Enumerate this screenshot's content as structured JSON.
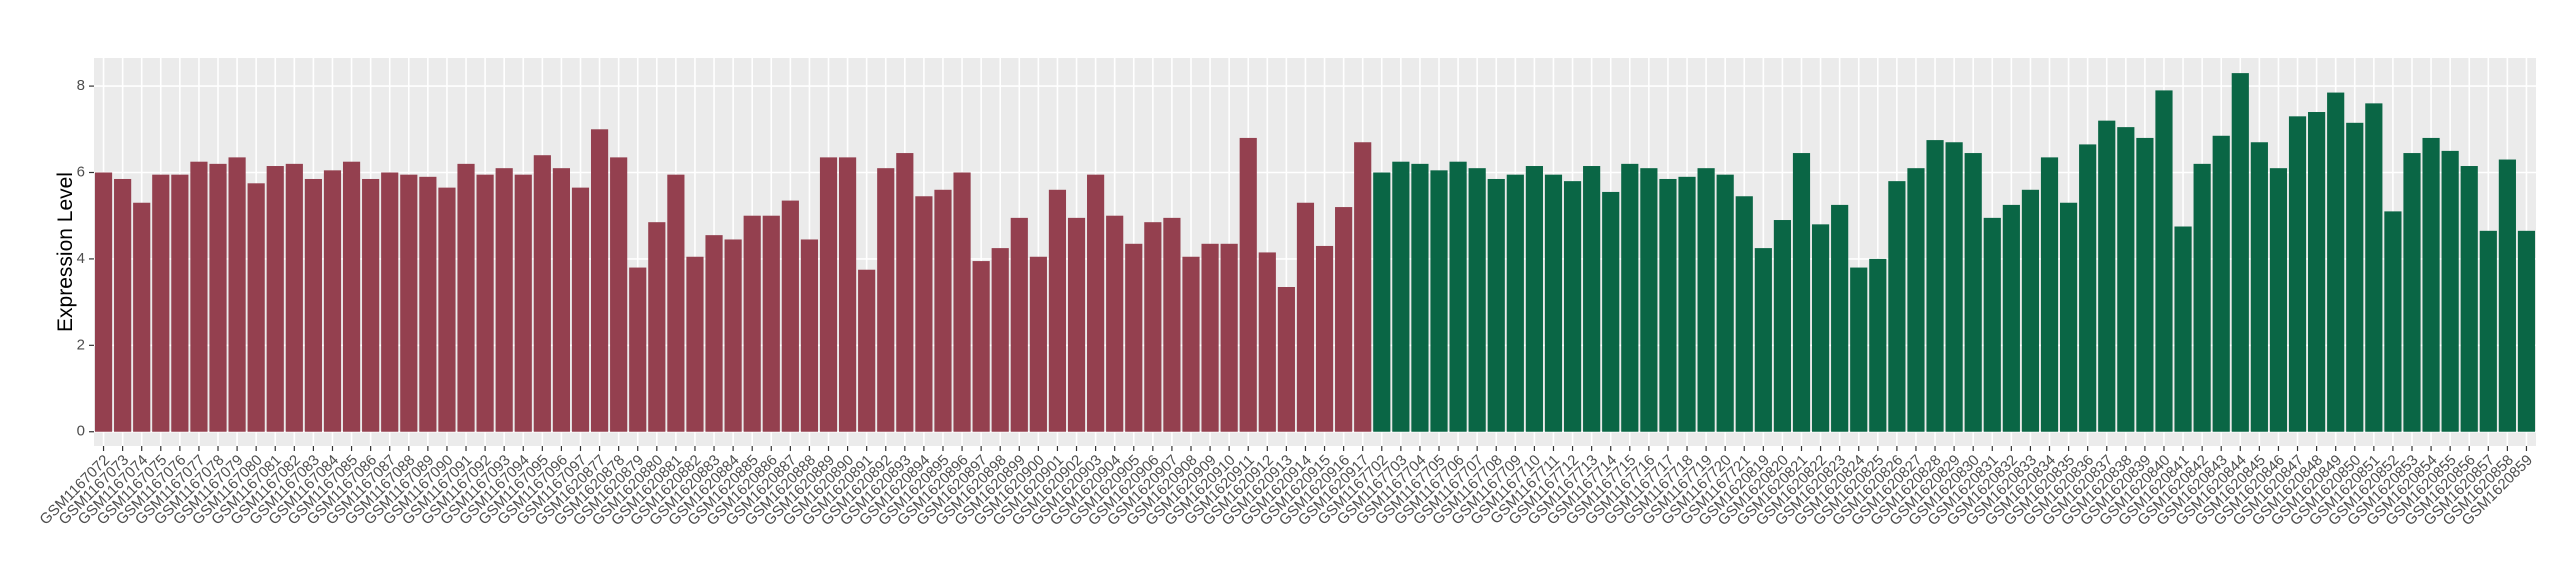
{
  "chart_data": {
    "type": "bar",
    "y_label": "Expression Level",
    "categories": [
      "GSM1167072",
      "GSM1167073",
      "GSM1167074",
      "GSM1167075",
      "GSM1167076",
      "GSM1167077",
      "GSM1167078",
      "GSM1167079",
      "GSM1167080",
      "GSM1167081",
      "GSM1167082",
      "GSM1167083",
      "GSM1167084",
      "GSM1167085",
      "GSM1167086",
      "GSM1167087",
      "GSM1167088",
      "GSM1167089",
      "GSM1167090",
      "GSM1167091",
      "GSM1167092",
      "GSM1167093",
      "GSM1167094",
      "GSM1167095",
      "GSM1167096",
      "GSM1167097",
      "GSM1620877",
      "GSM1620878",
      "GSM1620879",
      "GSM1620880",
      "GSM1620881",
      "GSM1620882",
      "GSM1620883",
      "GSM1620884",
      "GSM1620885",
      "GSM1620886",
      "GSM1620887",
      "GSM1620888",
      "GSM1620889",
      "GSM1620890",
      "GSM1620891",
      "GSM1620892",
      "GSM1620893",
      "GSM1620894",
      "GSM1620895",
      "GSM1620896",
      "GSM1620897",
      "GSM1620898",
      "GSM1620899",
      "GSM1620900",
      "GSM1620901",
      "GSM1620902",
      "GSM1620903",
      "GSM1620904",
      "GSM1620905",
      "GSM1620906",
      "GSM1620907",
      "GSM1620908",
      "GSM1620909",
      "GSM1620910",
      "GSM1620911",
      "GSM1620912",
      "GSM1620913",
      "GSM1620914",
      "GSM1620915",
      "GSM1620916",
      "GSM1620917",
      "GSM1167702",
      "GSM1167703",
      "GSM1167704",
      "GSM1167705",
      "GSM1167706",
      "GSM1167707",
      "GSM1167708",
      "GSM1167709",
      "GSM1167710",
      "GSM1167711",
      "GSM1167712",
      "GSM1167713",
      "GSM1167714",
      "GSM1167715",
      "GSM1167716",
      "GSM1167717",
      "GSM1167718",
      "GSM1167719",
      "GSM1167720",
      "GSM1167721",
      "GSM1620819",
      "GSM1620820",
      "GSM1620821",
      "GSM1620822",
      "GSM1620823",
      "GSM1620824",
      "GSM1620825",
      "GSM1620826",
      "GSM1620827",
      "GSM1620828",
      "GSM1620829",
      "GSM1620830",
      "GSM1620831",
      "GSM1620832",
      "GSM1620833",
      "GSM1620834",
      "GSM1620835",
      "GSM1620836",
      "GSM1620837",
      "GSM1620838",
      "GSM1620839",
      "GSM1620840",
      "GSM1620841",
      "GSM1620842",
      "GSM1620843",
      "GSM1620844",
      "GSM1620845",
      "GSM1620846",
      "GSM1620847",
      "GSM1620848",
      "GSM1620849",
      "GSM1620850",
      "GSM1620851",
      "GSM1620852",
      "GSM1620853",
      "GSM1620854",
      "GSM1620855",
      "GSM1620856",
      "GSM1620857",
      "GSM1620858",
      "GSM1620859"
    ],
    "series": [
      {
        "color": "#94404F",
        "values": [
          6.0,
          5.85,
          5.3,
          5.95,
          5.95,
          6.25,
          6.2,
          6.35,
          5.75,
          6.15,
          6.2,
          5.85,
          6.05,
          6.25,
          5.85,
          6.0,
          5.95,
          5.9,
          5.65,
          6.2,
          5.95,
          6.1,
          5.95,
          6.4,
          6.1,
          5.65,
          7.0,
          6.35,
          3.8,
          4.85,
          5.95,
          4.05,
          4.55,
          4.45,
          5.0,
          5.0,
          5.35,
          4.45,
          6.35,
          6.35,
          3.75,
          6.1,
          6.45,
          5.45,
          5.6,
          6.0,
          3.95,
          4.25,
          4.95,
          4.05,
          5.6,
          4.95,
          5.95,
          5.0,
          4.35,
          4.85,
          4.95,
          4.05,
          4.35,
          4.35,
          6.8,
          4.15,
          3.35,
          5.3,
          4.3,
          5.2,
          6.7,
          null,
          null,
          null,
          null,
          null,
          null,
          null,
          null,
          null,
          null,
          null,
          null,
          null,
          null,
          null,
          null,
          null,
          null,
          null,
          null,
          null,
          null,
          null,
          null,
          null,
          null,
          null,
          null,
          null,
          null,
          null,
          null,
          null,
          null,
          null,
          null,
          null,
          null,
          null,
          null,
          null,
          null,
          null,
          null,
          null,
          null,
          null,
          null,
          null,
          null,
          null,
          null,
          null,
          null,
          null,
          null,
          null,
          null,
          null,
          null,
          null
        ]
      },
      {
        "color": "#0A6645",
        "values": [
          null,
          null,
          null,
          null,
          null,
          null,
          null,
          null,
          null,
          null,
          null,
          null,
          null,
          null,
          null,
          null,
          null,
          null,
          null,
          null,
          null,
          null,
          null,
          null,
          null,
          null,
          null,
          null,
          null,
          null,
          null,
          null,
          null,
          null,
          null,
          null,
          null,
          null,
          null,
          null,
          null,
          null,
          null,
          null,
          null,
          null,
          null,
          null,
          null,
          null,
          null,
          null,
          null,
          null,
          null,
          null,
          null,
          null,
          null,
          null,
          null,
          null,
          null,
          null,
          null,
          null,
          null,
          6.0,
          6.25,
          6.2,
          6.05,
          6.25,
          6.1,
          5.85,
          5.95,
          6.15,
          5.95,
          5.8,
          6.15,
          5.55,
          6.2,
          6.1,
          5.85,
          5.9,
          6.1,
          5.95,
          5.45,
          4.25,
          4.9,
          6.45,
          4.8,
          5.25,
          3.8,
          4.0,
          5.8,
          6.1,
          6.75,
          6.7,
          6.45,
          4.95,
          5.25,
          5.6,
          6.35,
          5.3,
          6.65,
          7.2,
          7.05,
          6.8,
          7.9,
          4.75,
          6.2,
          6.85,
          8.3,
          6.7,
          6.1,
          7.3,
          7.4,
          7.85,
          7.15,
          7.6,
          5.1,
          6.45,
          6.8,
          6.5,
          6.15,
          4.65,
          6.3,
          4.65
        ]
      }
    ],
    "ylim": [
      -0.33,
      8.65
    ],
    "yticks": [
      0,
      2,
      4,
      6,
      8
    ],
    "grid": true
  }
}
